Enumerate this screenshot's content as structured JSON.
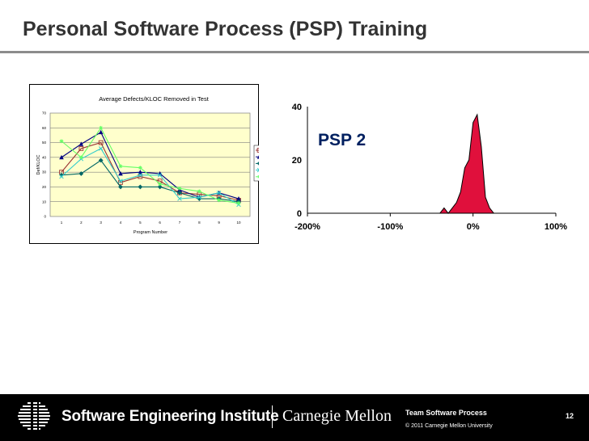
{
  "slide": {
    "title": "Personal Software Process (PSP) Training"
  },
  "chart_data": [
    {
      "type": "line",
      "title": "Average Defects/KLOC Removed in Test",
      "xlabel": "Program Number",
      "ylabel": "Def/KLOC",
      "categories": [
        "1",
        "2",
        "3",
        "4",
        "5",
        "6",
        "7",
        "8",
        "9",
        "10"
      ],
      "yticks": [
        "0",
        "10",
        "20",
        "30",
        "40",
        "50",
        "60",
        "70"
      ],
      "ylim": [
        0,
        70
      ],
      "grid": true,
      "legend": "right",
      "plot_background": "#ffffcc",
      "series": [
        {
          "name": "C++",
          "color": "#993333",
          "marker": "square",
          "values": [
            30,
            46,
            50,
            23,
            27,
            24,
            16,
            15,
            14,
            11
          ]
        },
        {
          "name": "C",
          "color": "#000080",
          "marker": "triangle",
          "values": [
            40,
            49,
            57,
            29,
            30,
            29,
            18,
            13,
            16,
            12
          ]
        },
        {
          "name": "C#",
          "color": "#006666",
          "marker": "diamond",
          "values": [
            28,
            29,
            38,
            20,
            20,
            20,
            16,
            12,
            12,
            10
          ]
        },
        {
          "name": "Java",
          "color": "#33cccc",
          "marker": "cross",
          "values": [
            27,
            39,
            46,
            24,
            28,
            28,
            12,
            13,
            16,
            8
          ]
        },
        {
          "name": "VB",
          "color": "#66ff66",
          "marker": "star",
          "values": [
            51,
            40,
            60,
            34,
            33,
            22,
            19,
            17,
            11,
            9
          ]
        }
      ]
    },
    {
      "type": "area",
      "title": "PSP 2",
      "xticks": [
        "-200%",
        "-100%",
        "0%",
        "100%"
      ],
      "yticks": [
        "0",
        "20",
        "40"
      ],
      "xlim": [
        -200,
        100
      ],
      "ylim": [
        0,
        40
      ],
      "fill_color": "#e0103c",
      "x": [
        -100,
        -40,
        -35,
        -30,
        -25,
        -20,
        -15,
        -10,
        -5,
        0,
        5,
        10,
        15,
        20,
        25
      ],
      "values": [
        0,
        0,
        2,
        0,
        2,
        4,
        8,
        17,
        20,
        34,
        37,
        25,
        6,
        2,
        0
      ]
    }
  ],
  "footer": {
    "institute": "Software Engineering Institute",
    "university": "Carnegie Mellon",
    "course": "Team Software Process",
    "copyright": "© 2011 Carnegie Mellon University",
    "page_number": "12"
  }
}
